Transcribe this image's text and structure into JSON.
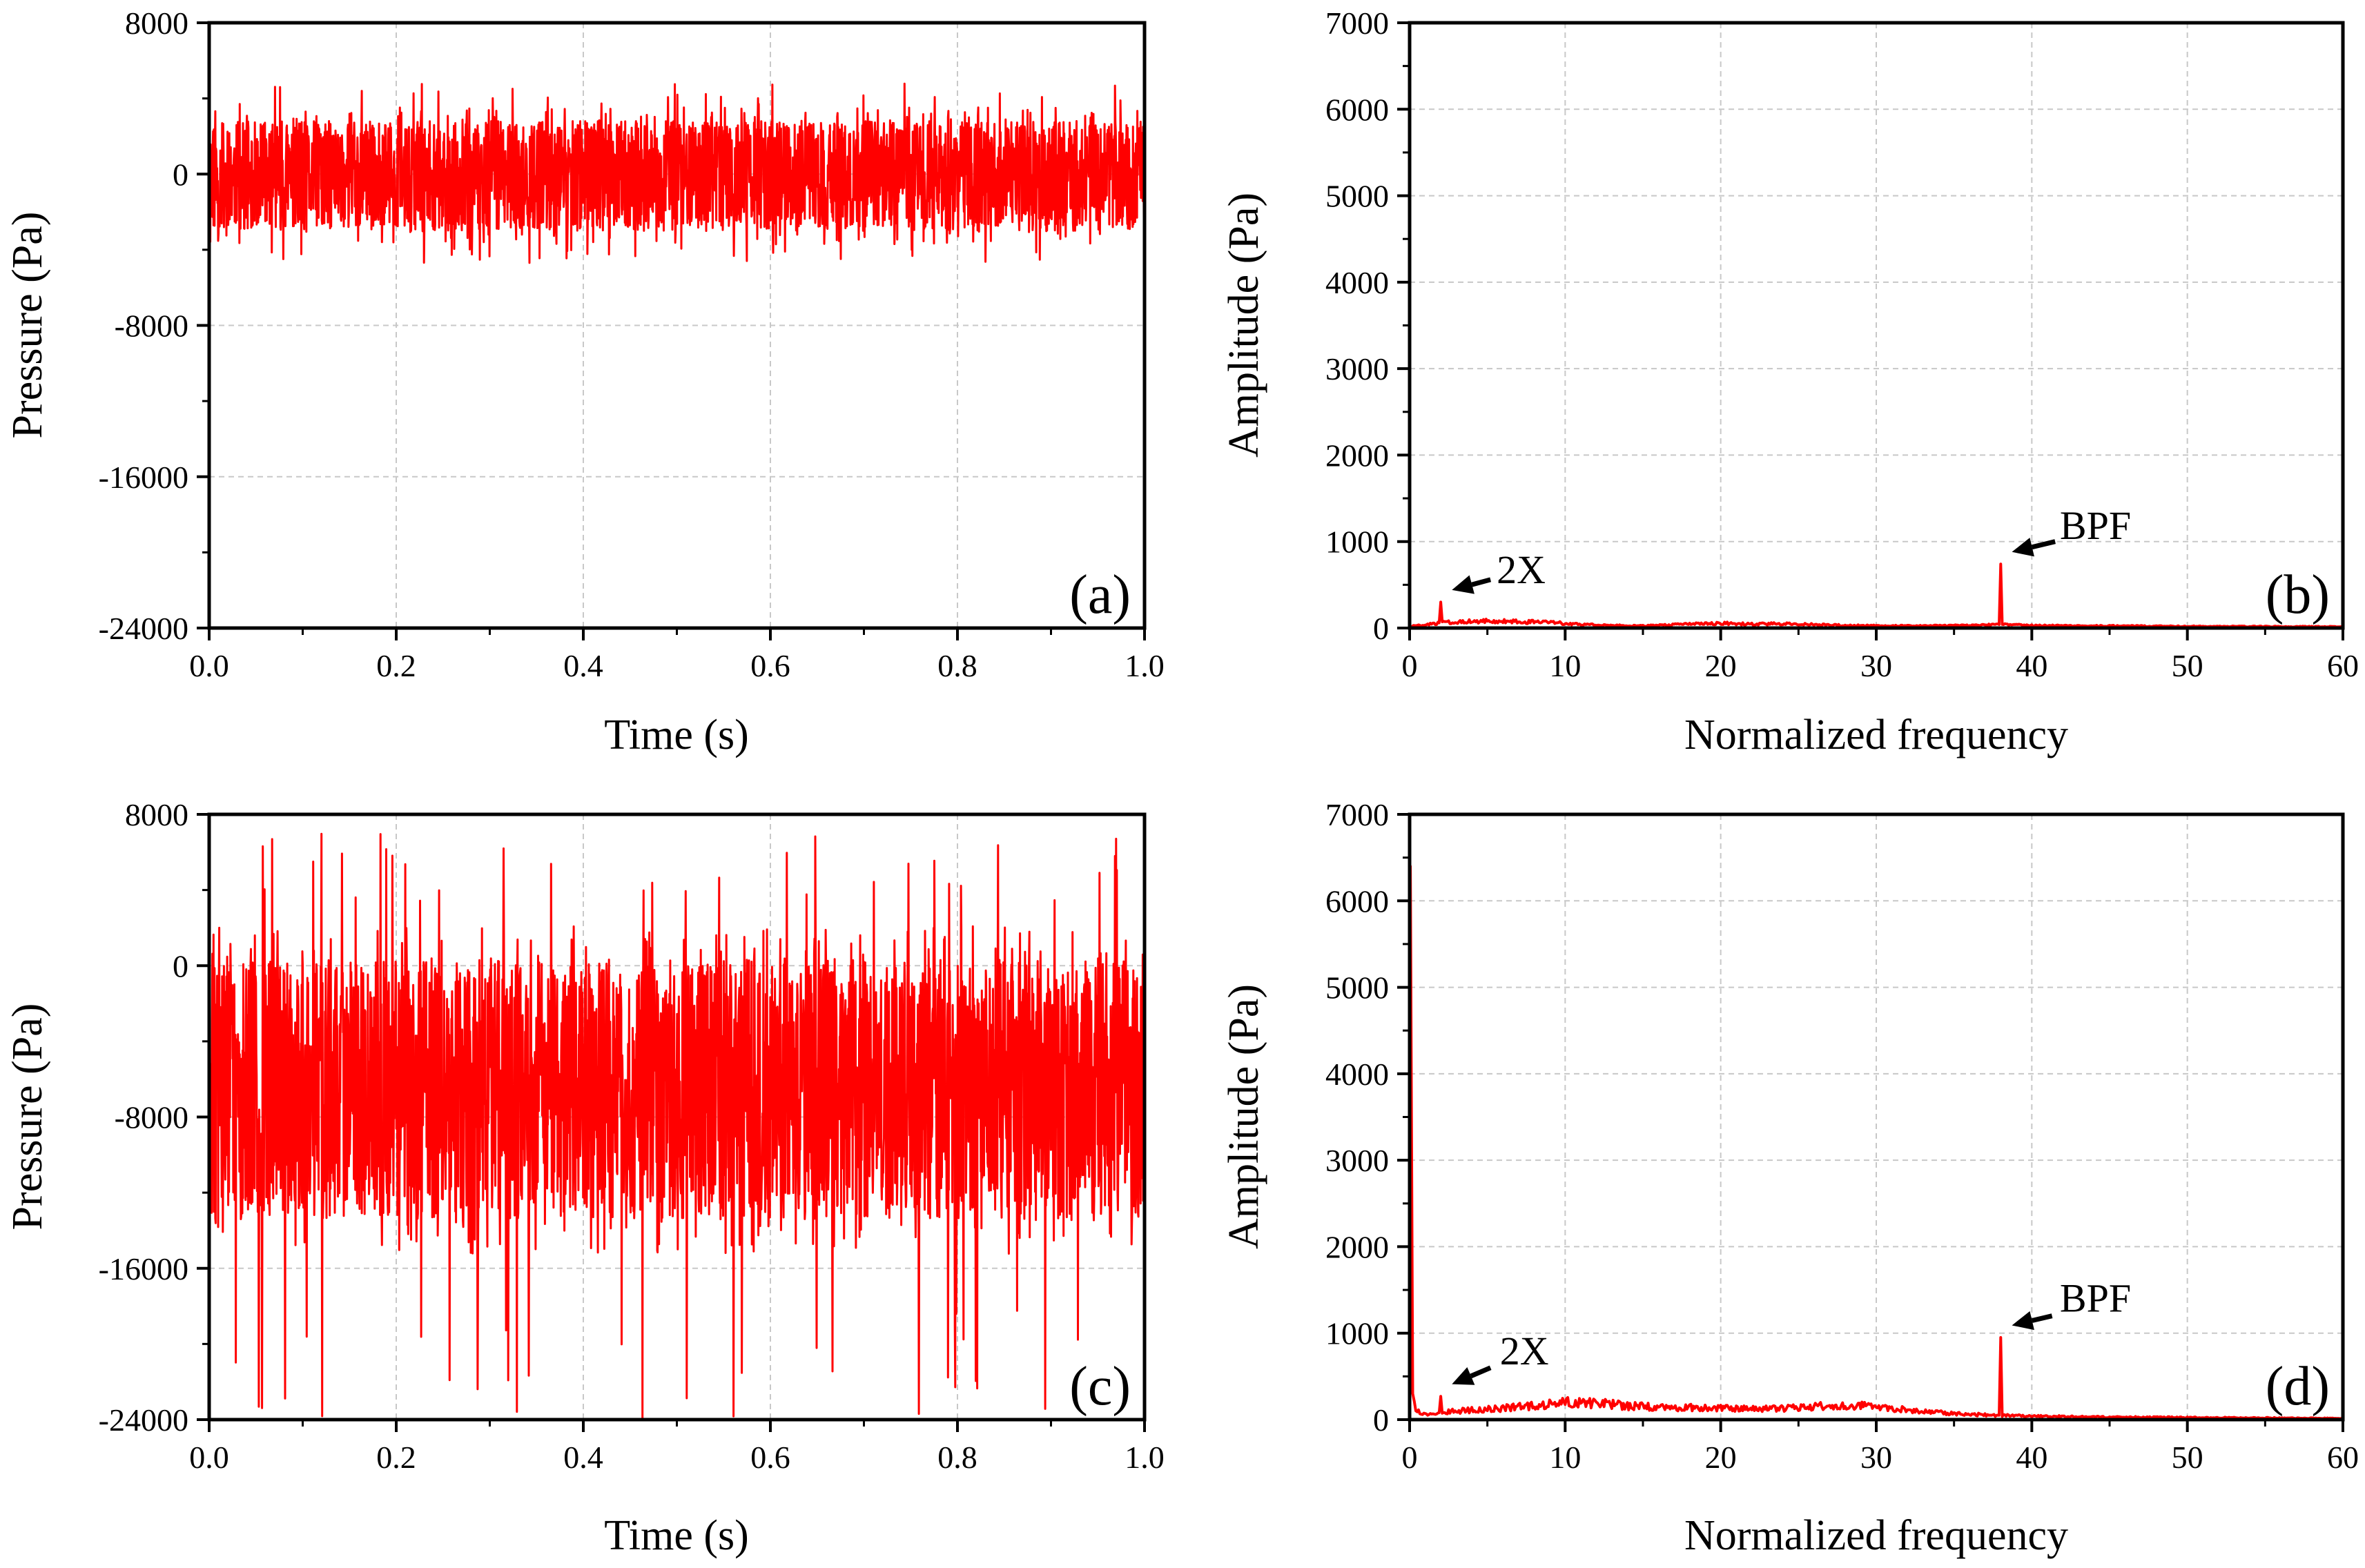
{
  "figure": {
    "line_color": "#ff0000",
    "grid_color": "#c8c8c8",
    "axis_color": "#000000"
  },
  "chart_data": [
    {
      "id": "a",
      "type": "line",
      "panel_label": "(a)",
      "xlabel": "Time (s)",
      "ylabel": "Pressure (Pa)",
      "xlim": [
        0.0,
        1.0
      ],
      "ylim": [
        -24000,
        8000
      ],
      "xticks": [
        0.0,
        0.2,
        0.4,
        0.6,
        0.8,
        1.0
      ],
      "xtick_labels": [
        "0.0",
        "0.2",
        "0.4",
        "0.6",
        "0.8",
        "1.0"
      ],
      "yticks": [
        -24000,
        -16000,
        -8000,
        0,
        8000
      ],
      "ytick_labels": [
        "-24000",
        "-16000",
        "-8000",
        "0",
        "8000"
      ],
      "grid": true,
      "series": [
        {
          "name": "pressure",
          "signal": {
            "mean": -200,
            "band_low": -3000,
            "band_high": 2800,
            "max": 4800,
            "min": -4700,
            "seed": 11
          }
        }
      ],
      "annotations": []
    },
    {
      "id": "b",
      "type": "line",
      "panel_label": "(b)",
      "xlabel": "Normalized frequency",
      "ylabel": "Amplitude (Pa)",
      "xlim": [
        0,
        60
      ],
      "ylim": [
        0,
        7000
      ],
      "xticks": [
        0,
        10,
        20,
        30,
        40,
        50,
        60
      ],
      "xtick_labels": [
        "0",
        "10",
        "20",
        "30",
        "40",
        "50",
        "60"
      ],
      "yticks": [
        0,
        1000,
        2000,
        3000,
        4000,
        5000,
        6000,
        7000
      ],
      "ytick_labels": [
        "0",
        "1000",
        "2000",
        "3000",
        "4000",
        "5000",
        "6000",
        "7000"
      ],
      "grid": true,
      "series": [
        {
          "name": "amplitude",
          "x": [
            0,
            1,
            1.9,
            2,
            2.1,
            3,
            5,
            8,
            10,
            12,
            15,
            18,
            20,
            22,
            24,
            26,
            28,
            30,
            33,
            36,
            37.9,
            38,
            38.1,
            40,
            45,
            50,
            55,
            60
          ],
          "y": [
            20,
            35,
            60,
            300,
            60,
            75,
            80,
            70,
            55,
            35,
            25,
            45,
            55,
            45,
            50,
            40,
            30,
            30,
            25,
            30,
            40,
            740,
            40,
            30,
            25,
            20,
            18,
            15
          ]
        }
      ],
      "annotations": [
        {
          "text": "2X",
          "x": 2,
          "y": 300,
          "arrow_from": [
            5.2,
            560
          ],
          "text_at": [
            5.6,
            520
          ]
        },
        {
          "text": "BPF",
          "x": 38,
          "y": 740,
          "arrow_from": [
            41.5,
            1000
          ],
          "text_at": [
            41.8,
            1030
          ]
        }
      ]
    },
    {
      "id": "c",
      "type": "line",
      "panel_label": "(c)",
      "xlabel": "Time (s)",
      "ylabel": "Pressure (Pa)",
      "xlim": [
        0.0,
        1.0
      ],
      "ylim": [
        -24000,
        8000
      ],
      "xticks": [
        0.0,
        0.2,
        0.4,
        0.6,
        0.8,
        1.0
      ],
      "xtick_labels": [
        "0.0",
        "0.2",
        "0.4",
        "0.6",
        "0.8",
        "1.0"
      ],
      "yticks": [
        -24000,
        -16000,
        -8000,
        0,
        8000
      ],
      "ytick_labels": [
        "-24000",
        "-16000",
        "-8000",
        "0",
        "8000"
      ],
      "grid": true,
      "series": [
        {
          "name": "pressure",
          "signal": {
            "mean": -6400,
            "band_low": -13500,
            "band_high": 400,
            "max": 7000,
            "min": -24000,
            "seed": 29
          }
        }
      ],
      "annotations": []
    },
    {
      "id": "d",
      "type": "line",
      "panel_label": "(d)",
      "xlabel": "Normalized frequency",
      "ylabel": "Amplitude (Pa)",
      "xlim": [
        0,
        60
      ],
      "ylim": [
        0,
        7000
      ],
      "xticks": [
        0,
        10,
        20,
        30,
        40,
        50,
        60
      ],
      "xtick_labels": [
        "0",
        "10",
        "20",
        "30",
        "40",
        "50",
        "60"
      ],
      "yticks": [
        0,
        1000,
        2000,
        3000,
        4000,
        5000,
        6000,
        7000
      ],
      "ytick_labels": [
        "0",
        "1000",
        "2000",
        "3000",
        "4000",
        "5000",
        "6000",
        "7000"
      ],
      "grid": true,
      "series": [
        {
          "name": "amplitude",
          "x": [
            0,
            0.05,
            0.2,
            0.4,
            1,
            1.9,
            2,
            2.1,
            3,
            5,
            8,
            10,
            12,
            14,
            16,
            18,
            20,
            22,
            25,
            28,
            30,
            33,
            35,
            37.9,
            38,
            38.1,
            40,
            45,
            50,
            55,
            60
          ],
          "y": [
            50,
            6400,
            300,
            120,
            60,
            80,
            270,
            80,
            100,
            120,
            160,
            200,
            190,
            160,
            140,
            140,
            130,
            120,
            140,
            170,
            150,
            100,
            70,
            50,
            950,
            50,
            40,
            30,
            25,
            20,
            15
          ]
        }
      ],
      "annotations": [
        {
          "text": "2X",
          "x": 2,
          "y": 270,
          "arrow_from": [
            5.2,
            600
          ],
          "text_at": [
            5.8,
            640
          ]
        },
        {
          "text": "BPF",
          "x": 38,
          "y": 950,
          "arrow_from": [
            41.3,
            1200
          ],
          "text_at": [
            41.8,
            1250
          ]
        }
      ]
    }
  ]
}
